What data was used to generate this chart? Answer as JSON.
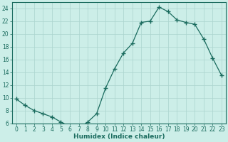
{
  "x": [
    0,
    1,
    2,
    3,
    4,
    5,
    6,
    7,
    8,
    9,
    10,
    11,
    12,
    13,
    14,
    15,
    16,
    17,
    18,
    19,
    20,
    21,
    22,
    23
  ],
  "y": [
    9.8,
    8.8,
    8.0,
    7.5,
    7.0,
    6.2,
    5.5,
    5.2,
    6.2,
    7.5,
    11.5,
    14.5,
    17.0,
    18.5,
    21.8,
    22.0,
    24.2,
    23.5,
    22.2,
    21.8,
    21.5,
    19.2,
    16.2,
    13.5
  ],
  "line_color": "#1a6b5e",
  "marker": "+",
  "marker_size": 4,
  "bg_color": "#cceee8",
  "grid_color": "#aad4ce",
  "xlabel": "Humidex (Indice chaleur)",
  "ylim": [
    6,
    25
  ],
  "xlim_min": -0.5,
  "xlim_max": 23.5,
  "yticks": [
    6,
    8,
    10,
    12,
    14,
    16,
    18,
    20,
    22,
    24
  ],
  "xticks": [
    0,
    1,
    2,
    3,
    4,
    5,
    6,
    7,
    8,
    9,
    10,
    11,
    12,
    13,
    14,
    15,
    16,
    17,
    18,
    19,
    20,
    21,
    22,
    23
  ],
  "tick_label_fontsize": 5.5,
  "xlabel_fontsize": 6.5
}
